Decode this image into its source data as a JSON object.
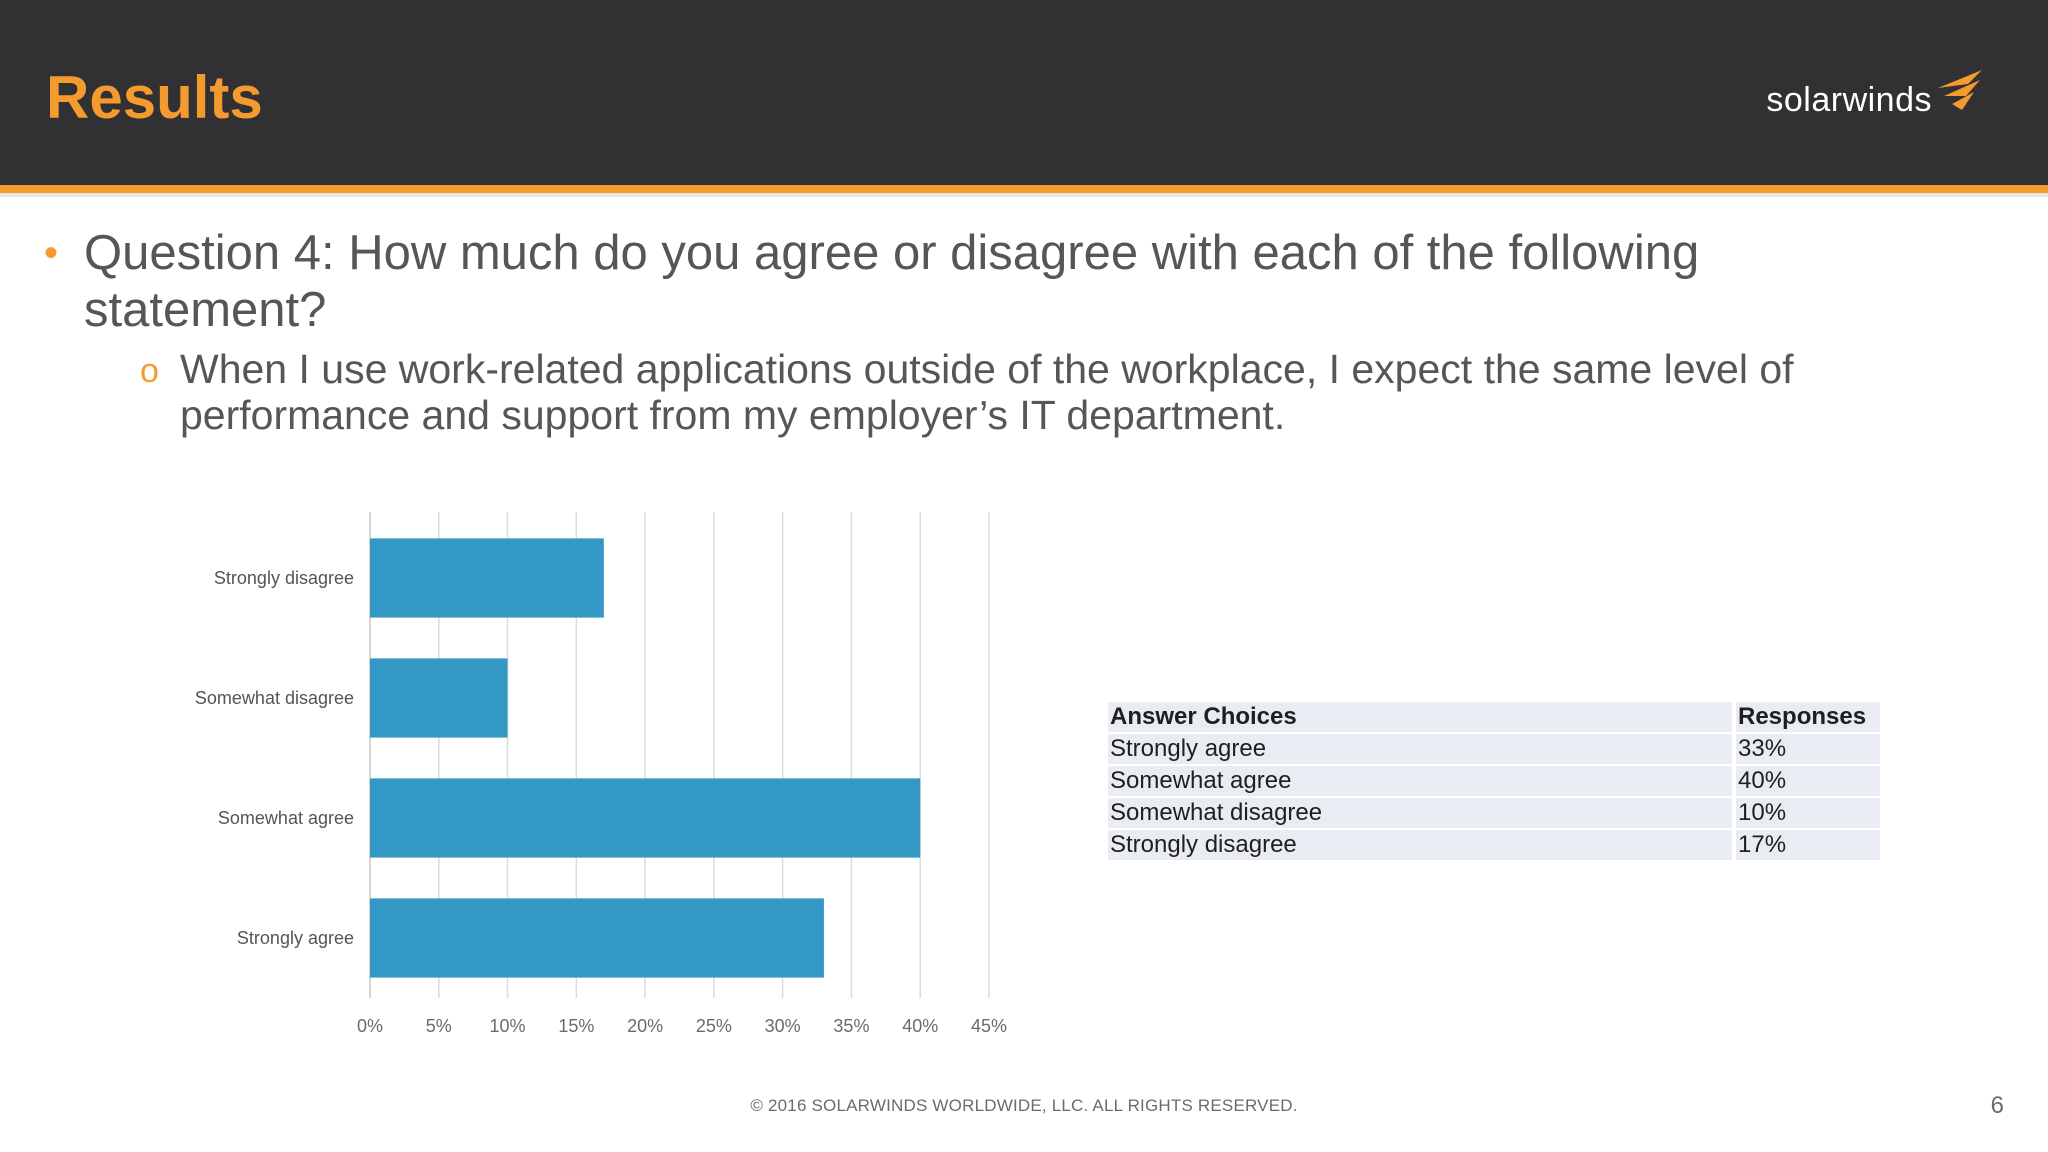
{
  "header": {
    "title": "Results",
    "logo_text": "solarwinds",
    "colors": {
      "background": "#313133",
      "accent": "#f49a2f"
    }
  },
  "question": {
    "text": "Question 4: How much do you agree or disagree with each of the following statement?",
    "statement": "When I use work-related applications outside of the workplace, I expect the same level of performance and support from my employer’s IT department."
  },
  "chart_data": {
    "type": "bar",
    "orientation": "horizontal",
    "categories": [
      "Strongly disagree",
      "Somewhat disagree",
      "Somewhat agree",
      "Strongly agree"
    ],
    "values": [
      17,
      10,
      40,
      33
    ],
    "xlim": [
      0,
      45
    ],
    "x_ticks": [
      "0%",
      "5%",
      "10%",
      "15%",
      "20%",
      "25%",
      "30%",
      "35%",
      "40%",
      "45%"
    ],
    "x_tick_values": [
      0,
      5,
      10,
      15,
      20,
      25,
      30,
      35,
      40,
      45
    ],
    "grid": true,
    "bar_color": "#3399c4"
  },
  "table": {
    "headers": [
      "Answer Choices",
      "Responses"
    ],
    "rows": [
      [
        "Strongly agree",
        "33%"
      ],
      [
        "Somewhat agree",
        "40%"
      ],
      [
        "Somewhat disagree",
        "10%"
      ],
      [
        "Strongly disagree",
        "17%"
      ]
    ]
  },
  "footer": {
    "copyright": "© 2016 SOLARWINDS WORLDWIDE, LLC. ALL RIGHTS RESERVED.",
    "page_number": "6"
  }
}
